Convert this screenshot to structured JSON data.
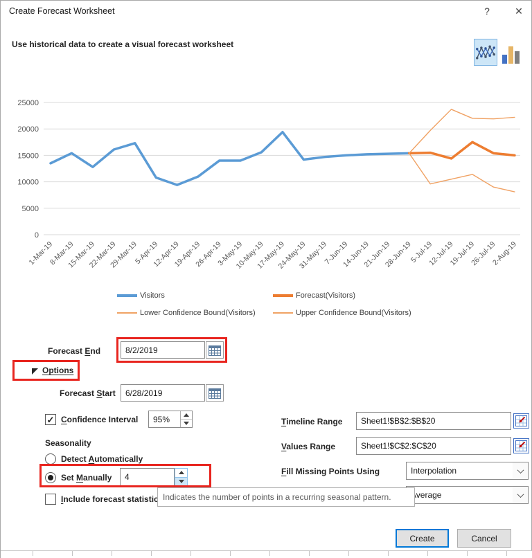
{
  "window": {
    "title": "Create Forecast Worksheet",
    "help_glyph": "?",
    "close_glyph": "✕",
    "subtitle": "Use historical data to create a visual forecast worksheet"
  },
  "chart_data": {
    "type": "line",
    "x": [
      "1-Mar-19",
      "8-Mar-19",
      "15-Mar-19",
      "22-Mar-19",
      "29-Mar-19",
      "5-Apr-19",
      "12-Apr-19",
      "19-Apr-19",
      "26-Apr-19",
      "3-May-19",
      "10-May-19",
      "17-May-19",
      "24-May-19",
      "31-May-19",
      "7-Jun-19",
      "14-Jun-19",
      "21-Jun-19",
      "28-Jun-19",
      "5-Jul-19",
      "12-Jul-19",
      "19-Jul-19",
      "26-Jul-19",
      "2-Aug-19"
    ],
    "ylim": [
      0,
      25000
    ],
    "yticks": [
      0,
      5000,
      10000,
      15000,
      20000,
      25000
    ],
    "grid": true,
    "legend_position": "bottom",
    "series": [
      {
        "name": "Visitors",
        "color": "#5B9BD5",
        "width": 3.5,
        "start_index": 0,
        "values": [
          13500,
          15400,
          12800,
          16100,
          17300,
          10800,
          9400,
          11000,
          14000,
          14000,
          15600,
          19400,
          14200,
          14700,
          15000,
          15200,
          15300,
          15400
        ]
      },
      {
        "name": "Forecast(Visitors)",
        "color": "#ED7D31",
        "width": 3.5,
        "start_index": 17,
        "values": [
          15400,
          15500,
          14400,
          17500,
          15400,
          15000
        ]
      },
      {
        "name": "Lower Confidence Bound(Visitors)",
        "color": "#F0A264",
        "width": 1.4,
        "start_index": 17,
        "values": [
          15400,
          9600,
          10500,
          11400,
          9000,
          8100
        ]
      },
      {
        "name": "Upper Confidence Bound(Visitors)",
        "color": "#F0A264",
        "width": 1.4,
        "start_index": 17,
        "values": [
          15400,
          19700,
          23700,
          22000,
          21900,
          22200
        ]
      }
    ]
  },
  "form": {
    "forecast_end": {
      "pre": "Forecast ",
      "key": "E",
      "post": "nd",
      "value": "8/2/2019"
    },
    "options_label": "Options",
    "forecast_start": {
      "pre": "Forecast ",
      "key": "S",
      "post": "tart",
      "value": "6/28/2019"
    },
    "confidence": {
      "pre": "",
      "key": "C",
      "post": "onfidence Interval",
      "value": "95%",
      "checked_glyph": "✓"
    },
    "seasonality_label": "Seasonality",
    "detect_auto": {
      "pre": "Detect ",
      "key": "A",
      "post": "utomatically"
    },
    "set_manually": {
      "pre": "Set ",
      "key": "M",
      "post": "anually",
      "value": "4"
    },
    "include_stats": {
      "pre": "",
      "key": "I",
      "post": "nclude forecast statistics"
    },
    "timeline_range": {
      "pre": "",
      "key": "T",
      "post": "imeline Range",
      "value": "Sheet1!$B$2:$B$20"
    },
    "values_range": {
      "pre": "",
      "key": "V",
      "post": "alues Range",
      "value": "Sheet1!$C$2:$C$20"
    },
    "fill_missing": {
      "pre": "",
      "key": "F",
      "post": "ill Missing Points Using",
      "value": "Interpolation"
    },
    "aggregate": {
      "value": "Average"
    }
  },
  "tooltip": {
    "text": "Indicates the number of points in a recurring seasonal pattern."
  },
  "buttons": {
    "create": "Create",
    "cancel": "Cancel"
  },
  "colors": {
    "accent_blue": "#0078D7",
    "chart_blue": "#5B9BD5",
    "chart_orange": "#ED7D31",
    "bound_orange": "#F0A264",
    "highlight_red": "#E8251F",
    "selected_icon_bg": "#CDE6F7"
  }
}
